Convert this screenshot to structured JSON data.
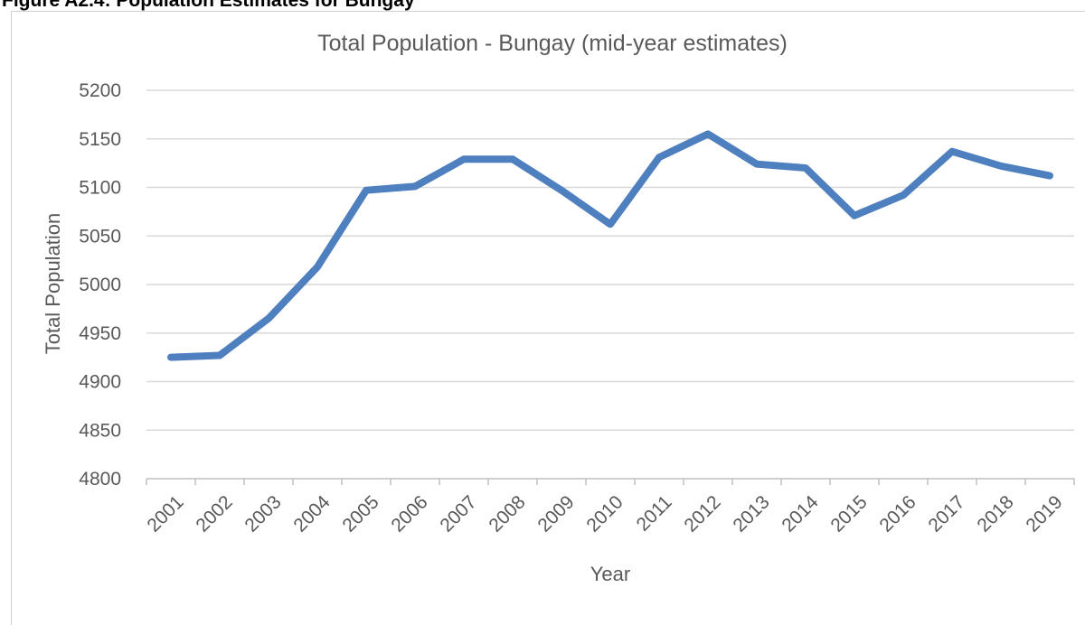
{
  "figure": {
    "caption": "Figure A2.4: Population Estimates for Bungay"
  },
  "chart_data": {
    "type": "line",
    "title": "Total Population - Bungay (mid-year estimates)",
    "xlabel": "Year",
    "ylabel": "Total Population",
    "ylim": [
      4800,
      5200
    ],
    "ytick_step": 50,
    "grid": "horizontal",
    "legend": "none",
    "categories": [
      "2001",
      "2002",
      "2003",
      "2004",
      "2005",
      "2006",
      "2007",
      "2008",
      "2009",
      "2010",
      "2011",
      "2012",
      "2013",
      "2014",
      "2015",
      "2016",
      "2017",
      "2018",
      "2019"
    ],
    "series": [
      {
        "color": "#4e7fbf",
        "values": [
          4925,
          4927,
          4965,
          5018,
          5097,
          5101,
          5129,
          5129,
          5097,
          5062,
          5131,
          5155,
          5124,
          5120,
          5071,
          5092,
          5137,
          5122,
          5112
        ]
      }
    ],
    "colors": {
      "gridline": "#d9d9d9",
      "axis": "#bfbfbf",
      "text": "#595959"
    }
  }
}
